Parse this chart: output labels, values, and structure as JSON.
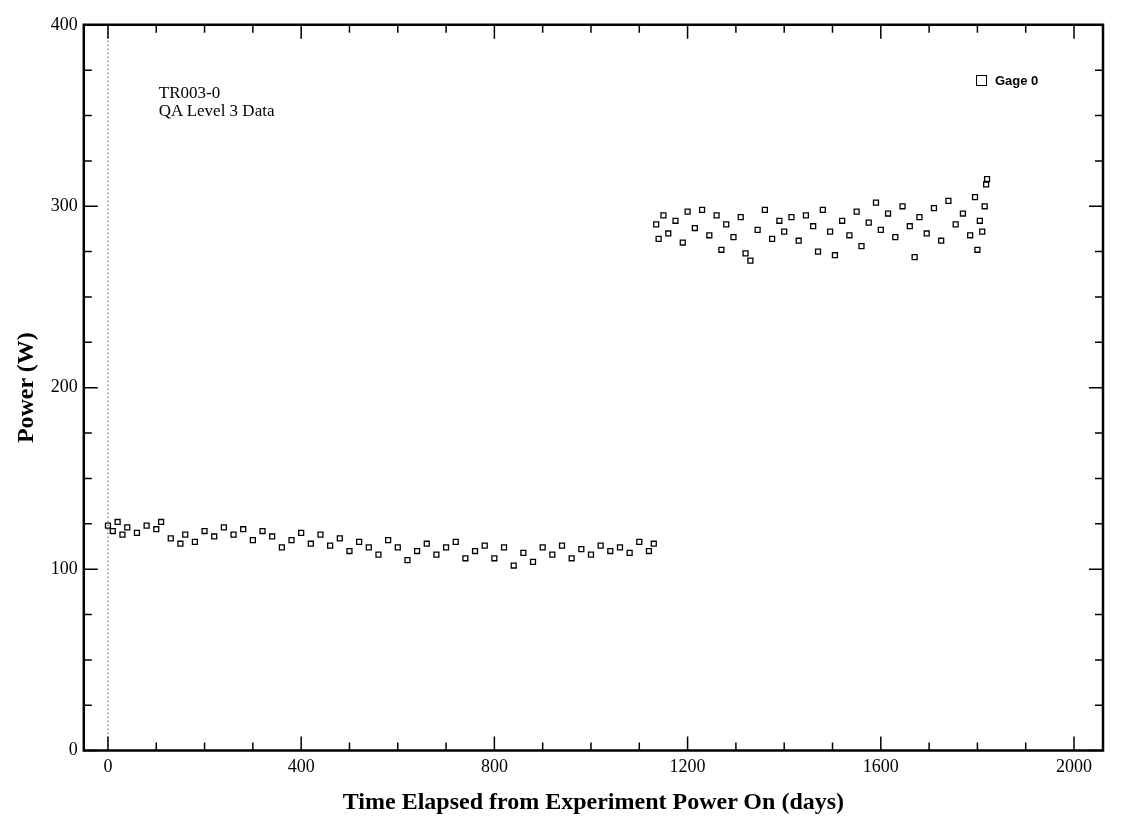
{
  "chart_data": {
    "type": "scatter",
    "xlabel": "Time Elapsed from Experiment Power On (days)",
    "ylabel": "Power (W)",
    "annotations": [
      "TR003-0",
      "QA Level 3 Data"
    ],
    "xlim": [
      -50,
      2060
    ],
    "ylim": [
      0,
      400
    ],
    "xticks": [
      0,
      {
        "value": 100,
        "label": null
      },
      {
        "value": 200,
        "label": null
      },
      {
        "value": 300,
        "label": null
      },
      400,
      {
        "value": 500,
        "label": null
      },
      {
        "value": 600,
        "label": null
      },
      {
        "value": 700,
        "label": null
      },
      800,
      {
        "value": 900,
        "label": null
      },
      {
        "value": 1000,
        "label": null
      },
      {
        "value": 1100,
        "label": null
      },
      1200,
      {
        "value": 1300,
        "label": null
      },
      {
        "value": 1400,
        "label": null
      },
      {
        "value": 1500,
        "label": null
      },
      1600,
      {
        "value": 1700,
        "label": null
      },
      {
        "value": 1800,
        "label": null
      },
      {
        "value": 1900,
        "label": null
      },
      2000
    ],
    "yticks": [
      0,
      {
        "value": 25,
        "label": null
      },
      {
        "value": 50,
        "label": null
      },
      {
        "value": 75,
        "label": null
      },
      100,
      {
        "value": 125,
        "label": null
      },
      {
        "value": 150,
        "label": null
      },
      {
        "value": 175,
        "label": null
      },
      200,
      {
        "value": 225,
        "label": null
      },
      {
        "value": 250,
        "label": null
      },
      {
        "value": 275,
        "label": null
      },
      300,
      {
        "value": 325,
        "label": null
      },
      {
        "value": 350,
        "label": null
      },
      {
        "value": 375,
        "label": null
      },
      400
    ],
    "grid": false,
    "legend": "top right",
    "marker": "square",
    "ref_lines": [
      {
        "axis": "x",
        "value": 0,
        "line_style": "dotted",
        "color": "#000000"
      }
    ],
    "series": [
      {
        "name": "Gage 0",
        "color": "#000000",
        "x": [
          0,
          10,
          20,
          30,
          40,
          60,
          80,
          100,
          110,
          130,
          150,
          160,
          180,
          200,
          220,
          240,
          260,
          280,
          300,
          320,
          340,
          360,
          380,
          400,
          420,
          440,
          460,
          480,
          500,
          520,
          540,
          560,
          580,
          600,
          620,
          640,
          660,
          680,
          700,
          720,
          740,
          760,
          780,
          800,
          820,
          840,
          860,
          880,
          900,
          920,
          940,
          960,
          980,
          1000,
          1020,
          1040,
          1060,
          1080,
          1100,
          1120,
          1130,
          1135,
          1140,
          1150,
          1160,
          1175,
          1190,
          1200,
          1215,
          1230,
          1245,
          1260,
          1270,
          1280,
          1295,
          1310,
          1320,
          1330,
          1345,
          1360,
          1375,
          1390,
          1400,
          1415,
          1430,
          1445,
          1460,
          1470,
          1480,
          1495,
          1505,
          1520,
          1535,
          1550,
          1560,
          1575,
          1590,
          1600,
          1615,
          1630,
          1645,
          1660,
          1670,
          1680,
          1695,
          1710,
          1725,
          1740,
          1755,
          1770,
          1785,
          1795,
          1800,
          1805,
          1810,
          1815,
          1818,
          1820
        ],
        "values": [
          124,
          121,
          126,
          119,
          123,
          120,
          124,
          122,
          126,
          117,
          114,
          119,
          115,
          121,
          118,
          123,
          119,
          122,
          116,
          121,
          118,
          112,
          116,
          120,
          114,
          119,
          113,
          117,
          110,
          115,
          112,
          108,
          116,
          112,
          105,
          110,
          114,
          108,
          112,
          115,
          106,
          110,
          113,
          106,
          112,
          102,
          109,
          104,
          112,
          108,
          113,
          106,
          111,
          108,
          113,
          110,
          112,
          109,
          115,
          110,
          114,
          290,
          282,
          295,
          285,
          292,
          280,
          297,
          288,
          298,
          284,
          295,
          276,
          290,
          283,
          294,
          274,
          270,
          287,
          298,
          282,
          292,
          286,
          294,
          281,
          295,
          289,
          275,
          298,
          286,
          273,
          292,
          284,
          297,
          278,
          291,
          302,
          287,
          296,
          283,
          300,
          289,
          272,
          294,
          285,
          299,
          281,
          303,
          290,
          296,
          284,
          305,
          276,
          292,
          286,
          300,
          312,
          315
        ]
      }
    ]
  }
}
